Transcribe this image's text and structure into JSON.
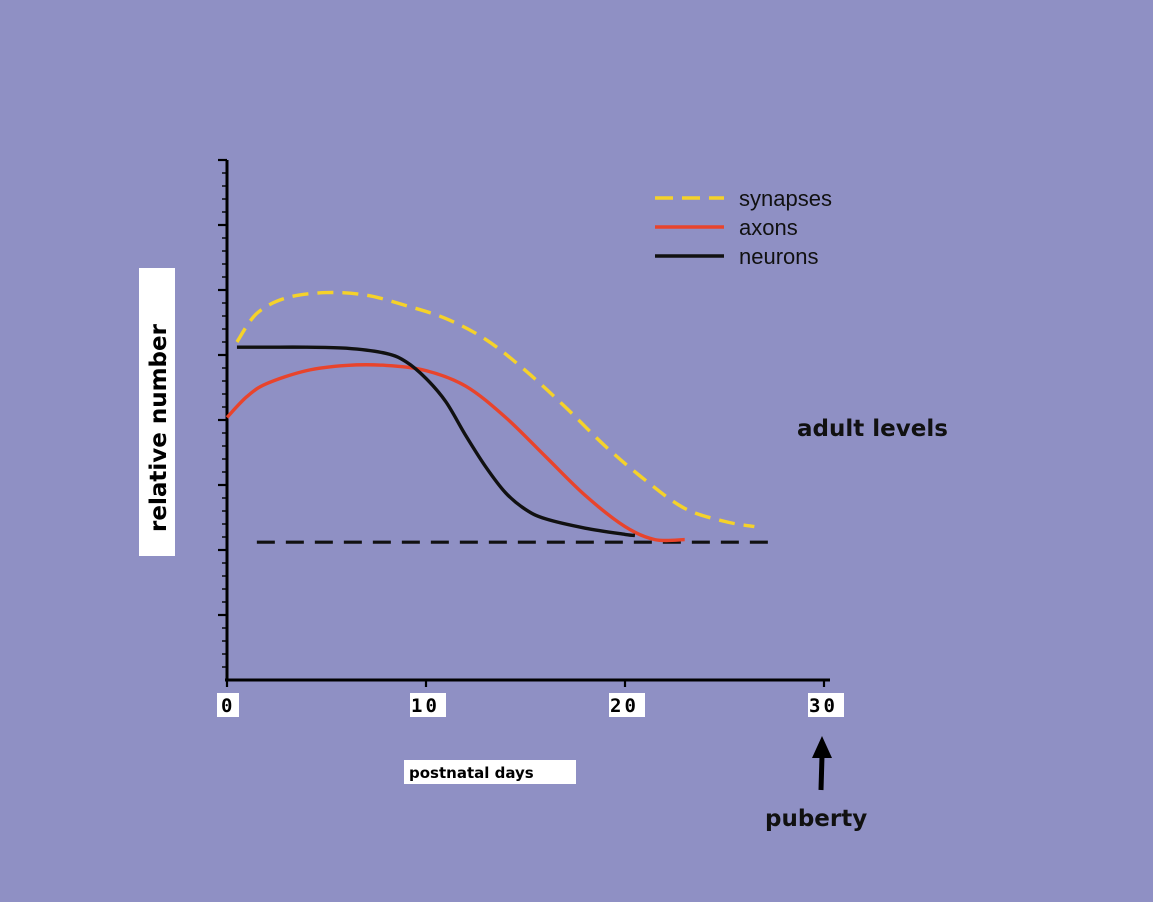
{
  "chart_data": {
    "type": "line",
    "title": "",
    "xlabel": "postnatal days",
    "ylabel": "relative number",
    "xlim": [
      0,
      30
    ],
    "ylim": [
      0,
      10
    ],
    "x_ticks": [
      "0",
      "10",
      "20",
      "30"
    ],
    "y_tick_count": 8,
    "y_tick_labels_shown": false,
    "grid": false,
    "legend_position": "top-right",
    "series": [
      {
        "name": "synapses",
        "color": "#f5d22a",
        "style": "dashed",
        "x": [
          0.5,
          1.5,
          3,
          5,
          7,
          9,
          11,
          13,
          15,
          17,
          19,
          21,
          23,
          25,
          26.5
        ],
        "y": [
          6.5,
          7.05,
          7.35,
          7.45,
          7.4,
          7.2,
          6.95,
          6.55,
          5.95,
          5.25,
          4.5,
          3.85,
          3.3,
          3.05,
          2.95
        ]
      },
      {
        "name": "axons",
        "color": "#e8442c",
        "style": "solid",
        "x": [
          0,
          1,
          2,
          4,
          6,
          8,
          10,
          12,
          14,
          16,
          18,
          20,
          21.5,
          23
        ],
        "y": [
          5.05,
          5.45,
          5.7,
          5.95,
          6.05,
          6.05,
          5.95,
          5.65,
          5.05,
          4.3,
          3.55,
          2.95,
          2.7,
          2.7
        ]
      },
      {
        "name": "neurons",
        "color": "#111111",
        "style": "solid",
        "x": [
          0.5,
          2,
          4,
          6,
          8,
          9,
          10,
          11,
          12,
          13,
          14,
          15,
          16,
          18,
          20,
          20.5
        ],
        "y": [
          6.4,
          6.4,
          6.4,
          6.38,
          6.28,
          6.12,
          5.8,
          5.35,
          4.7,
          4.1,
          3.6,
          3.28,
          3.1,
          2.92,
          2.8,
          2.78
        ]
      }
    ],
    "reference_line": {
      "label": "adult levels",
      "y": 2.65,
      "x_range": [
        1.5,
        27.5
      ],
      "style": "dashed",
      "color": "#111111"
    },
    "annotations": [
      {
        "text": "puberty",
        "x": 30,
        "arrow": "up"
      }
    ]
  }
}
